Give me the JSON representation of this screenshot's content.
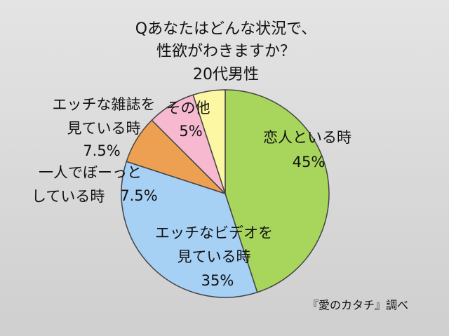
{
  "chart_data": {
    "type": "pie",
    "title": "Qあなたはどんな状況で、\n性欲がわきますか？",
    "subtitle": "20代男性",
    "source": "『愛のカタチ』調べ",
    "categories": [
      "恋人といる時",
      "エッチなビデオを\n見ている時",
      "一人でぼーっと\nしている時",
      "エッチな雑誌を\n見ている時",
      "その他"
    ],
    "values": [
      45,
      35,
      7.5,
      7.5,
      5
    ],
    "value_labels": [
      "45%",
      "35%",
      "7.5%",
      "7.5%",
      "5%"
    ],
    "colors": [
      "#a8d65c",
      "#a6d0f4",
      "#eea052",
      "#f6b9d0",
      "#fbf7a2"
    ]
  }
}
